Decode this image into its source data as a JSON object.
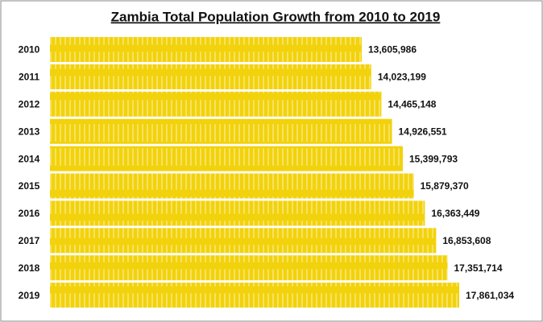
{
  "chart_data": {
    "type": "bar",
    "orientation": "horizontal",
    "title": "Zambia Total Population Growth from 2010 to 2019",
    "categories": [
      "2010",
      "2011",
      "2012",
      "2013",
      "2014",
      "2015",
      "2016",
      "2017",
      "2018",
      "2019"
    ],
    "values": [
      13605986,
      14023199,
      14465148,
      14926551,
      15399793,
      15879370,
      16363449,
      16853608,
      17351714,
      17861034
    ],
    "value_labels": [
      "13,605,986",
      "14,023,199",
      "14,465,148",
      "14,926,551",
      "15,399,793",
      "15,879,370",
      "16,363,449",
      "16,853,608",
      "17,351,714",
      "17,861,034"
    ],
    "color": "#f2d20c"
  }
}
